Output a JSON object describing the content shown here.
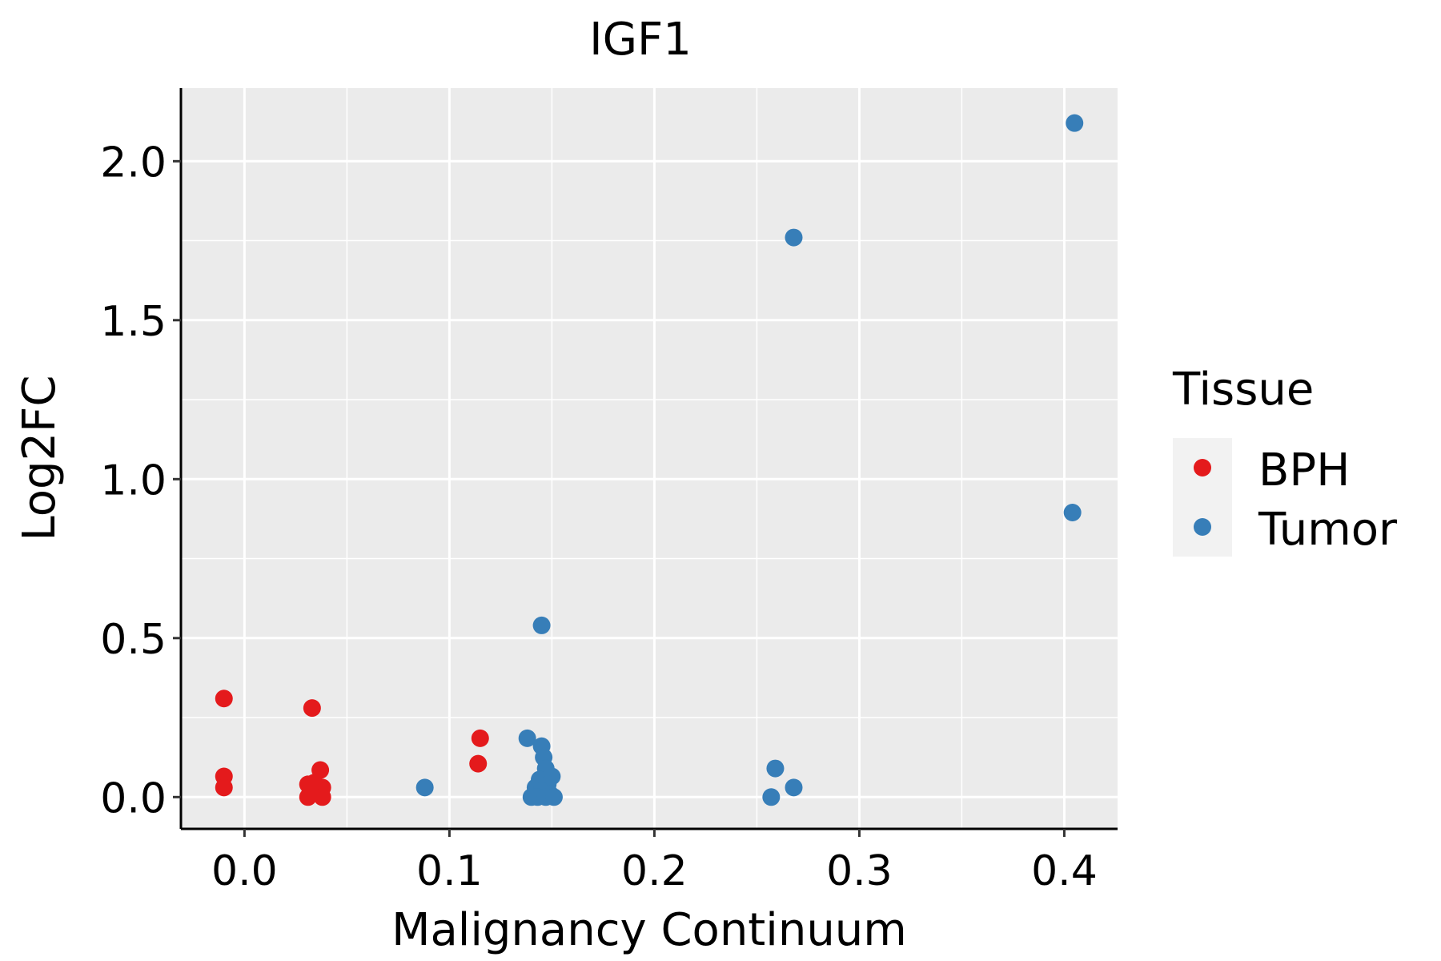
{
  "chart_data": {
    "type": "scatter",
    "title": "IGF1",
    "xlabel": "Malignancy Continuum",
    "ylabel": "Log2FC",
    "xlim": [
      -0.031,
      0.426
    ],
    "ylim": [
      -0.1,
      2.23
    ],
    "x_ticks": [
      0.0,
      0.1,
      0.2,
      0.3,
      0.4
    ],
    "x_tick_labels": [
      "0.0",
      "0.1",
      "0.2",
      "0.3",
      "0.4"
    ],
    "y_ticks": [
      0.0,
      0.5,
      1.0,
      1.5,
      2.0
    ],
    "y_tick_labels": [
      "0.0",
      "0.5",
      "1.0",
      "1.5",
      "2.0"
    ],
    "grid": true,
    "legend": {
      "title": "Tissue",
      "position": "right",
      "entries": [
        {
          "label": "BPH",
          "color": "#E41A1C"
        },
        {
          "label": "Tumor",
          "color": "#377EB8"
        }
      ]
    },
    "series": [
      {
        "name": "BPH",
        "color": "#E41A1C",
        "points": [
          {
            "x": -0.01,
            "y": 0.31
          },
          {
            "x": -0.01,
            "y": 0.065
          },
          {
            "x": -0.01,
            "y": 0.03
          },
          {
            "x": 0.033,
            "y": 0.28
          },
          {
            "x": 0.037,
            "y": 0.085
          },
          {
            "x": 0.031,
            "y": 0.04
          },
          {
            "x": 0.034,
            "y": 0.045
          },
          {
            "x": 0.038,
            "y": 0.03
          },
          {
            "x": 0.036,
            "y": 0.02
          },
          {
            "x": 0.031,
            "y": 0.0
          },
          {
            "x": 0.038,
            "y": 0.0
          },
          {
            "x": 0.115,
            "y": 0.185
          },
          {
            "x": 0.114,
            "y": 0.105
          }
        ]
      },
      {
        "name": "Tumor",
        "color": "#377EB8",
        "points": [
          {
            "x": 0.405,
            "y": 2.12
          },
          {
            "x": 0.268,
            "y": 1.76
          },
          {
            "x": 0.404,
            "y": 0.895
          },
          {
            "x": 0.145,
            "y": 0.54
          },
          {
            "x": 0.138,
            "y": 0.185
          },
          {
            "x": 0.145,
            "y": 0.16
          },
          {
            "x": 0.146,
            "y": 0.125
          },
          {
            "x": 0.147,
            "y": 0.09
          },
          {
            "x": 0.15,
            "y": 0.065
          },
          {
            "x": 0.144,
            "y": 0.055
          },
          {
            "x": 0.148,
            "y": 0.04
          },
          {
            "x": 0.142,
            "y": 0.03
          },
          {
            "x": 0.145,
            "y": 0.02
          },
          {
            "x": 0.149,
            "y": 0.01
          },
          {
            "x": 0.14,
            "y": 0.0
          },
          {
            "x": 0.143,
            "y": 0.0
          },
          {
            "x": 0.147,
            "y": 0.0
          },
          {
            "x": 0.151,
            "y": 0.0
          },
          {
            "x": 0.088,
            "y": 0.03
          },
          {
            "x": 0.259,
            "y": 0.09
          },
          {
            "x": 0.268,
            "y": 0.03
          },
          {
            "x": 0.257,
            "y": 0.0
          }
        ]
      }
    ]
  }
}
